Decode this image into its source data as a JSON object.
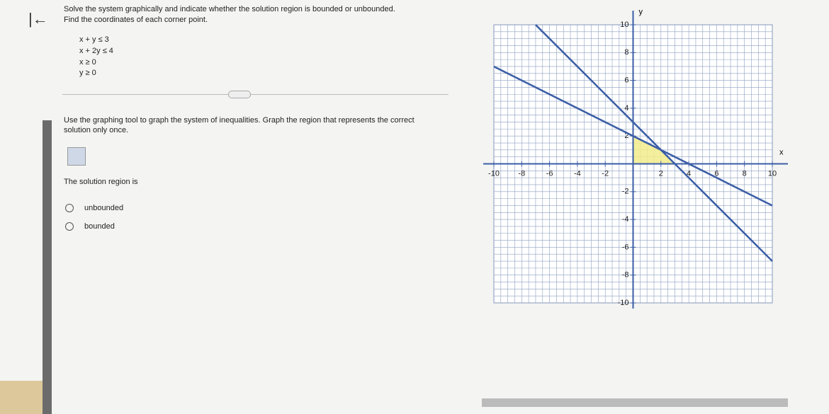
{
  "header": {
    "instruction": "Solve the system graphically and indicate whether the solution region is bounded or unbounded.",
    "sub_instruction": "Find the coordinates of each corner point."
  },
  "system": [
    "x + y ≤ 3",
    "x + 2y ≤ 4",
    "x ≥ 0",
    "y ≥ 0"
  ],
  "prompt": "Use the graphing tool to graph the system of inequalities. Graph the region that represents the correct solution only once.",
  "question": "The solution region is",
  "options": [
    "unbounded",
    "bounded"
  ],
  "graph": {
    "type": "graph",
    "x_label": "x",
    "y_label": "y",
    "xlim": [
      -10,
      10
    ],
    "ylim": [
      -10,
      10
    ],
    "xticks": [
      -10,
      -8,
      -6,
      -4,
      -2,
      2,
      4,
      6,
      8,
      10
    ],
    "yticks": [
      -10,
      -8,
      -6,
      -4,
      -2,
      2,
      4,
      6,
      8,
      10
    ],
    "line_color": "#3b5ea6",
    "region_color": "#f2ec8c",
    "lines": [
      {
        "a": 1,
        "b": 1,
        "c": 3
      },
      {
        "a": 1,
        "b": 2,
        "c": 4
      }
    ]
  }
}
